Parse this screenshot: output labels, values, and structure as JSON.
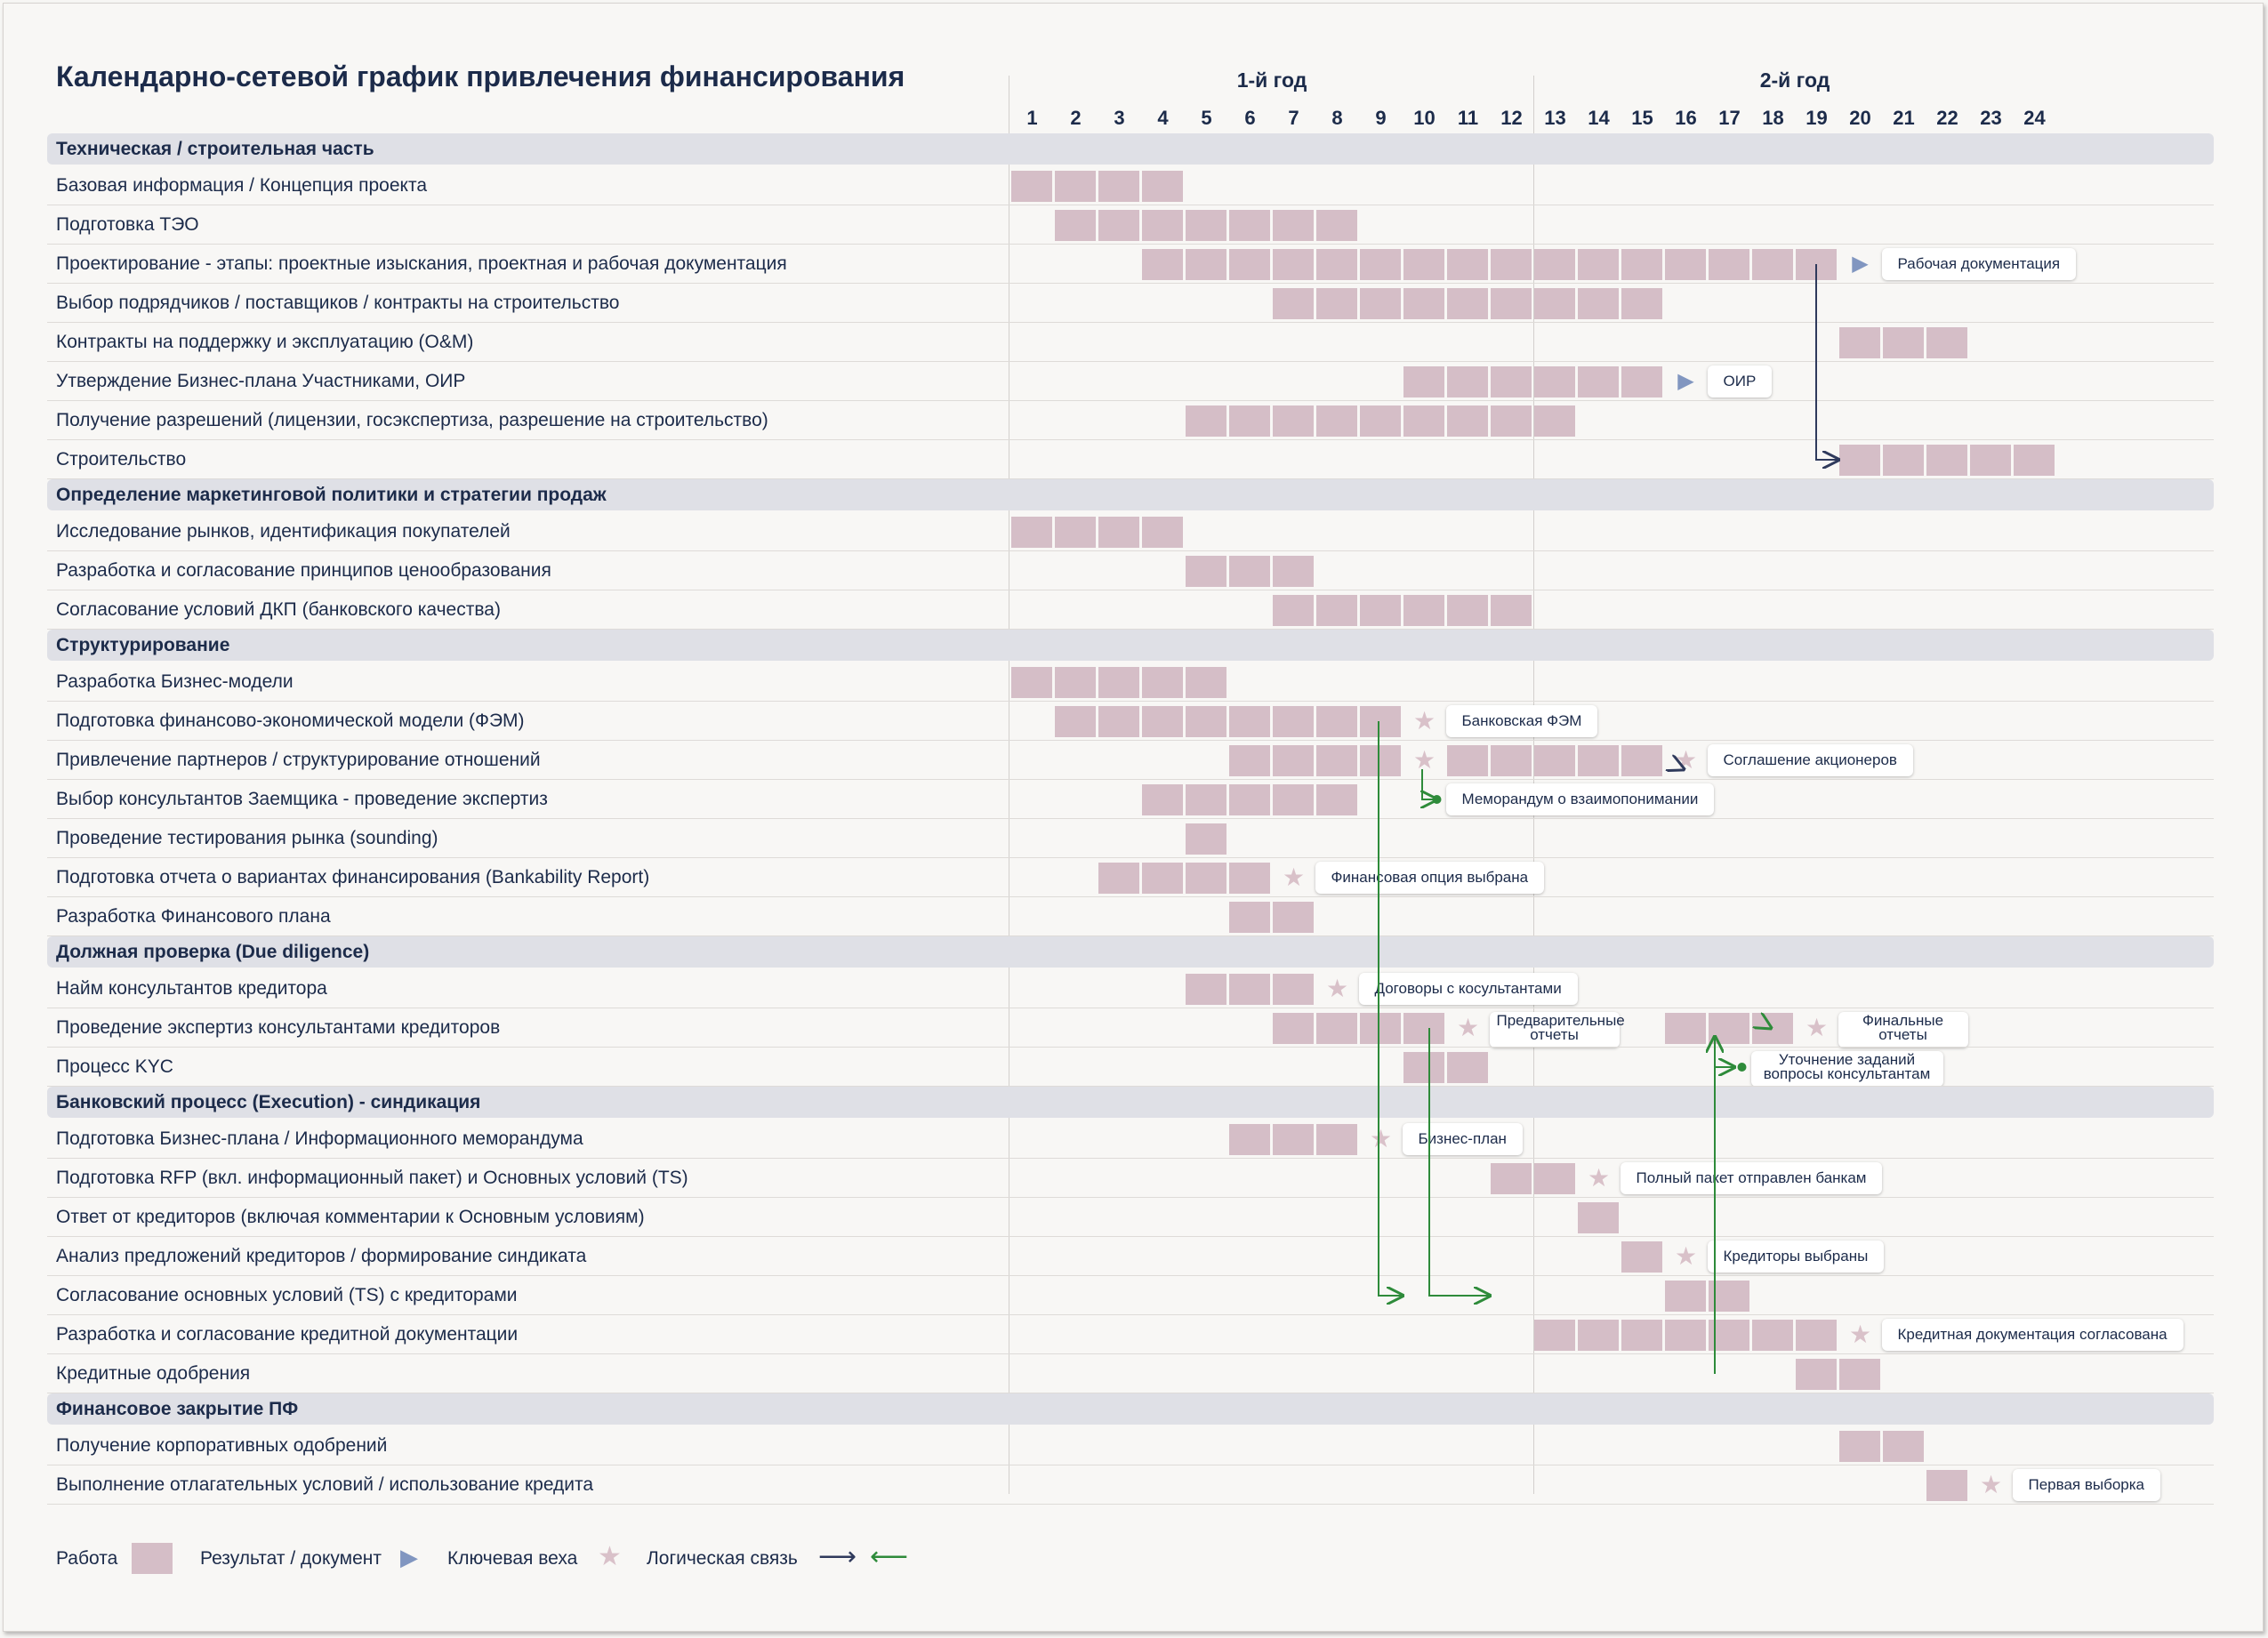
{
  "title": "Календарно-сетевой график привлечения финансирования",
  "years": [
    "1-й год",
    "2-й год"
  ],
  "months": [
    "1",
    "2",
    "3",
    "4",
    "5",
    "6",
    "7",
    "8",
    "9",
    "10",
    "11",
    "12",
    "13",
    "14",
    "15",
    "16",
    "17",
    "18",
    "19",
    "20",
    "21",
    "22",
    "23",
    "24"
  ],
  "colors": {
    "work": "#d5bec7",
    "document": "#8196c0",
    "milestone": "#d9c1c9",
    "section_band": "#dfe0e6",
    "link_dark": "#2f3a5c",
    "link_green": "#2e8b3a"
  },
  "sections": [
    {
      "title": "Техническая / строительная часть",
      "rows": [
        {
          "label": "Базовая информация / Концепция проекта",
          "bars": [
            [
              1,
              4
            ]
          ]
        },
        {
          "label": "Подготовка ТЭО",
          "bars": [
            [
              2,
              8
            ]
          ]
        },
        {
          "label": "Проектирование - этапы: проектные изыскания, проектная и рабочая документация",
          "bars": [
            [
              4,
              19
            ]
          ],
          "marker": {
            "type": "document",
            "month": 20,
            "label": "Рабочая документация"
          }
        },
        {
          "label": "Выбор подрядчиков / поставщиков / контракты на строительство",
          "bars": [
            [
              7,
              15
            ]
          ]
        },
        {
          "label": "Контракты на поддержку и эксплуатацию (O&M)",
          "bars": [
            [
              20,
              22
            ]
          ]
        },
        {
          "label": "Утверждение Бизнес-плана Участниками, ОИР",
          "bars": [
            [
              10,
              15
            ]
          ],
          "marker": {
            "type": "document",
            "month": 16,
            "label": "ОИР"
          }
        },
        {
          "label": "Получение разрешений (лицензии, госэкспертиза, разрешение на строительство)",
          "bars": [
            [
              5,
              13
            ]
          ]
        },
        {
          "label": "Строительство",
          "bars": [
            [
              20,
              21
            ],
            [
              22,
              24
            ]
          ]
        }
      ]
    },
    {
      "title": "Определение маркетинговой политики и стратегии продаж",
      "rows": [
        {
          "label": "Исследование рынков, идентификация покупателей",
          "bars": [
            [
              1,
              4
            ]
          ]
        },
        {
          "label": "Разработка и согласование принципов ценообразования",
          "bars": [
            [
              5,
              7
            ]
          ]
        },
        {
          "label": "Согласование условий ДКП (банковского качества)",
          "bars": [
            [
              7,
              12
            ]
          ]
        }
      ]
    },
    {
      "title": "Структурирование",
      "rows": [
        {
          "label": "Разработка Бизнес-модели",
          "bars": [
            [
              1,
              5
            ]
          ]
        },
        {
          "label": "Подготовка финансово-экономической модели (ФЭМ)",
          "bars": [
            [
              2,
              9
            ]
          ],
          "marker": {
            "type": "milestone",
            "month": 10,
            "label": "Банковская ФЭМ"
          }
        },
        {
          "label": "Привлечение партнеров / структурирование отношений",
          "bars": [
            [
              6,
              9
            ],
            [
              11,
              15
            ]
          ],
          "marker": {
            "type": "milestone",
            "month": 16,
            "label": "Соглашение акционеров"
          },
          "extra_star": 10
        },
        {
          "label": "Выбор консультантов Заемщика - проведение экспертиз",
          "bars": [
            [
              4,
              8
            ]
          ],
          "note": {
            "month": 10,
            "label": "Меморандум о взаимопонимании"
          }
        },
        {
          "label": "Проведение тестирования рынка (sounding)",
          "bars": [
            [
              5,
              5
            ]
          ]
        },
        {
          "label": "Подготовка отчета о вариантах финансирования (Bankability Report)",
          "bars": [
            [
              3,
              6
            ]
          ],
          "marker": {
            "type": "milestone",
            "month": 7,
            "label": "Финансовая опция выбрана"
          }
        },
        {
          "label": "Разработка Финансового плана",
          "bars": [
            [
              6,
              7
            ]
          ]
        }
      ]
    },
    {
      "title": "Должная проверка (Due diligence)",
      "rows": [
        {
          "label": "Найм консультантов кредитора",
          "bars": [
            [
              5,
              7
            ]
          ],
          "marker": {
            "type": "milestone",
            "month": 8,
            "label": "Договоры с косультантами"
          }
        },
        {
          "label": "Проведение экспертиз консультантами кредиторов",
          "bars": [
            [
              7,
              10
            ],
            [
              16,
              18
            ]
          ],
          "marker": {
            "type": "milestone",
            "month": 11,
            "label": "Предварительные отчеты"
          },
          "marker2": {
            "type": "milestone",
            "month": 19,
            "label": "Финальные отчеты"
          }
        },
        {
          "label": "Процесс KYC",
          "bars": [
            [
              10,
              11
            ]
          ],
          "note": {
            "month": 17,
            "label": "Уточнение заданий вопросы консультантам"
          }
        }
      ]
    },
    {
      "title": "Банковский процесс (Execution) - синдикация",
      "rows": [
        {
          "label": "Подготовка Бизнес-плана / Информационного меморандума",
          "bars": [
            [
              6,
              8
            ]
          ],
          "marker": {
            "type": "milestone",
            "month": 9,
            "label": "Бизнес-план"
          }
        },
        {
          "label": "Подготовка RFP (вкл. информационный пакет) и Основных условий (TS)",
          "bars": [
            [
              12,
              13
            ]
          ],
          "marker": {
            "type": "milestone",
            "month": 14,
            "label": "Полный пакет отправлен банкам"
          }
        },
        {
          "label": "Ответ от кредиторов (включая комментарии к Основным условиям)",
          "bars": [
            [
              14,
              14
            ]
          ]
        },
        {
          "label": "Анализ предложений кредиторов / формирование синдиката",
          "bars": [
            [
              15,
              15
            ]
          ],
          "marker": {
            "type": "milestone",
            "month": 16,
            "label": "Кредиторы выбраны"
          }
        },
        {
          "label": "Согласование основных условий (TS) с кредиторами",
          "bars": [
            [
              16,
              17
            ]
          ]
        },
        {
          "label": "Разработка и согласование кредитной документации",
          "bars": [
            [
              13,
              19
            ]
          ],
          "marker": {
            "type": "milestone",
            "month": 20,
            "label": "Кредитная документация согласована"
          }
        },
        {
          "label": "Кредитные одобрения",
          "bars": [
            [
              19,
              20
            ]
          ]
        }
      ]
    },
    {
      "title": "Финансовое закрытие ПФ",
      "rows": [
        {
          "label": "Получение корпоративных одобрений",
          "bars": [
            [
              20,
              21
            ]
          ]
        },
        {
          "label": "Выполнение отлагательных условий / использование кредита",
          "bars": [
            [
              22,
              22
            ]
          ],
          "marker": {
            "type": "milestone",
            "month": 23,
            "label": "Первая выборка"
          }
        }
      ]
    }
  ],
  "legend": {
    "work": "Работа",
    "document": "Результат / документ",
    "milestone": "Ключевая веха",
    "link": "Логическая связь"
  }
}
